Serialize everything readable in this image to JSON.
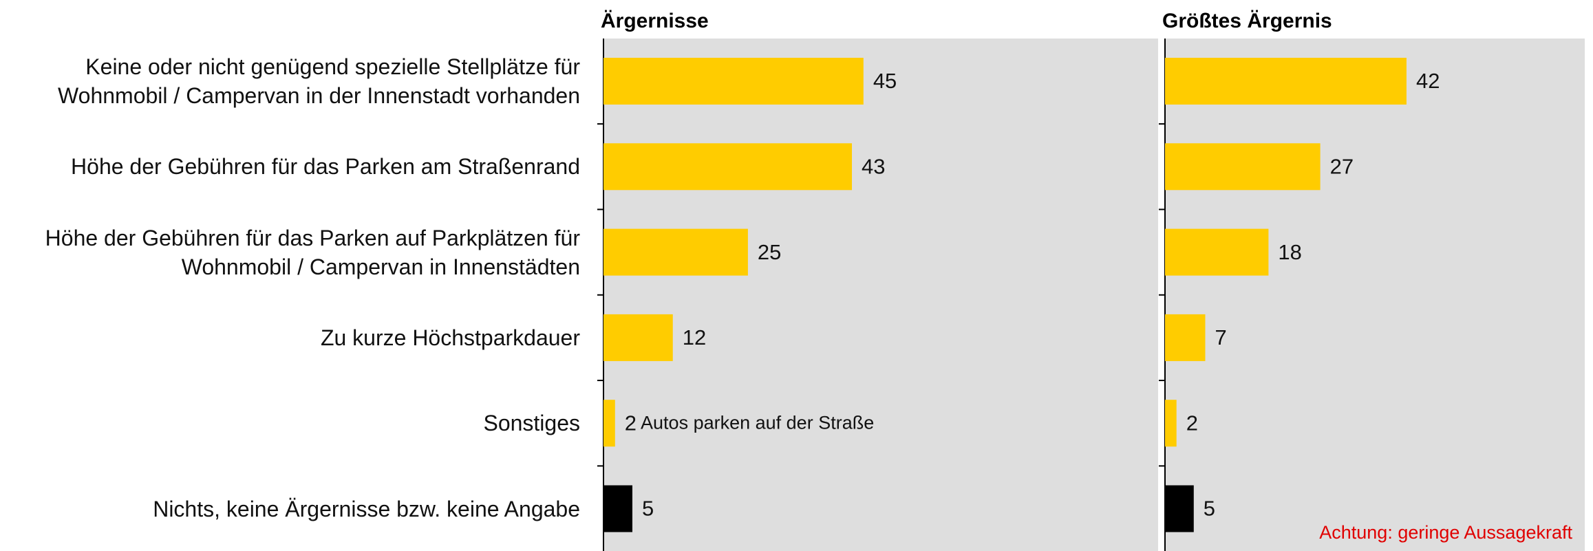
{
  "chart_data": [
    {
      "type": "barh",
      "title": "Ärgernisse",
      "categories": [
        "Keine oder nicht genügend spezielle Stellplätze für\nWohnmobil / Campervan in der Innenstadt vorhanden",
        "Höhe der Gebühren für das Parken am Straßenrand",
        "Höhe der Gebühren für das Parken auf Parkplätzen für\nWohnmobil / Campervan in Innenstädten",
        "Zu kurze Höchstparkdauer",
        "Sonstiges",
        "Nichts, keine Ärgernisse bzw. keine Angabe"
      ],
      "values": [
        45,
        43,
        25,
        12,
        2,
        5
      ],
      "colors": [
        "#ffcc00",
        "#ffcc00",
        "#ffcc00",
        "#ffcc00",
        "#ffcc00",
        "#000000"
      ],
      "xlim": [
        0,
        96
      ],
      "annotation": "Autos parken auf der Straße"
    },
    {
      "type": "barh",
      "title": "Größtes Ärgernis",
      "values": [
        42,
        27,
        18,
        7,
        2,
        5
      ],
      "colors": [
        "#ffcc00",
        "#ffcc00",
        "#ffcc00",
        "#ffcc00",
        "#ffcc00",
        "#000000"
      ],
      "xlim": [
        0,
        73
      ],
      "note": "Achtung: geringe Aussagekraft"
    }
  ]
}
